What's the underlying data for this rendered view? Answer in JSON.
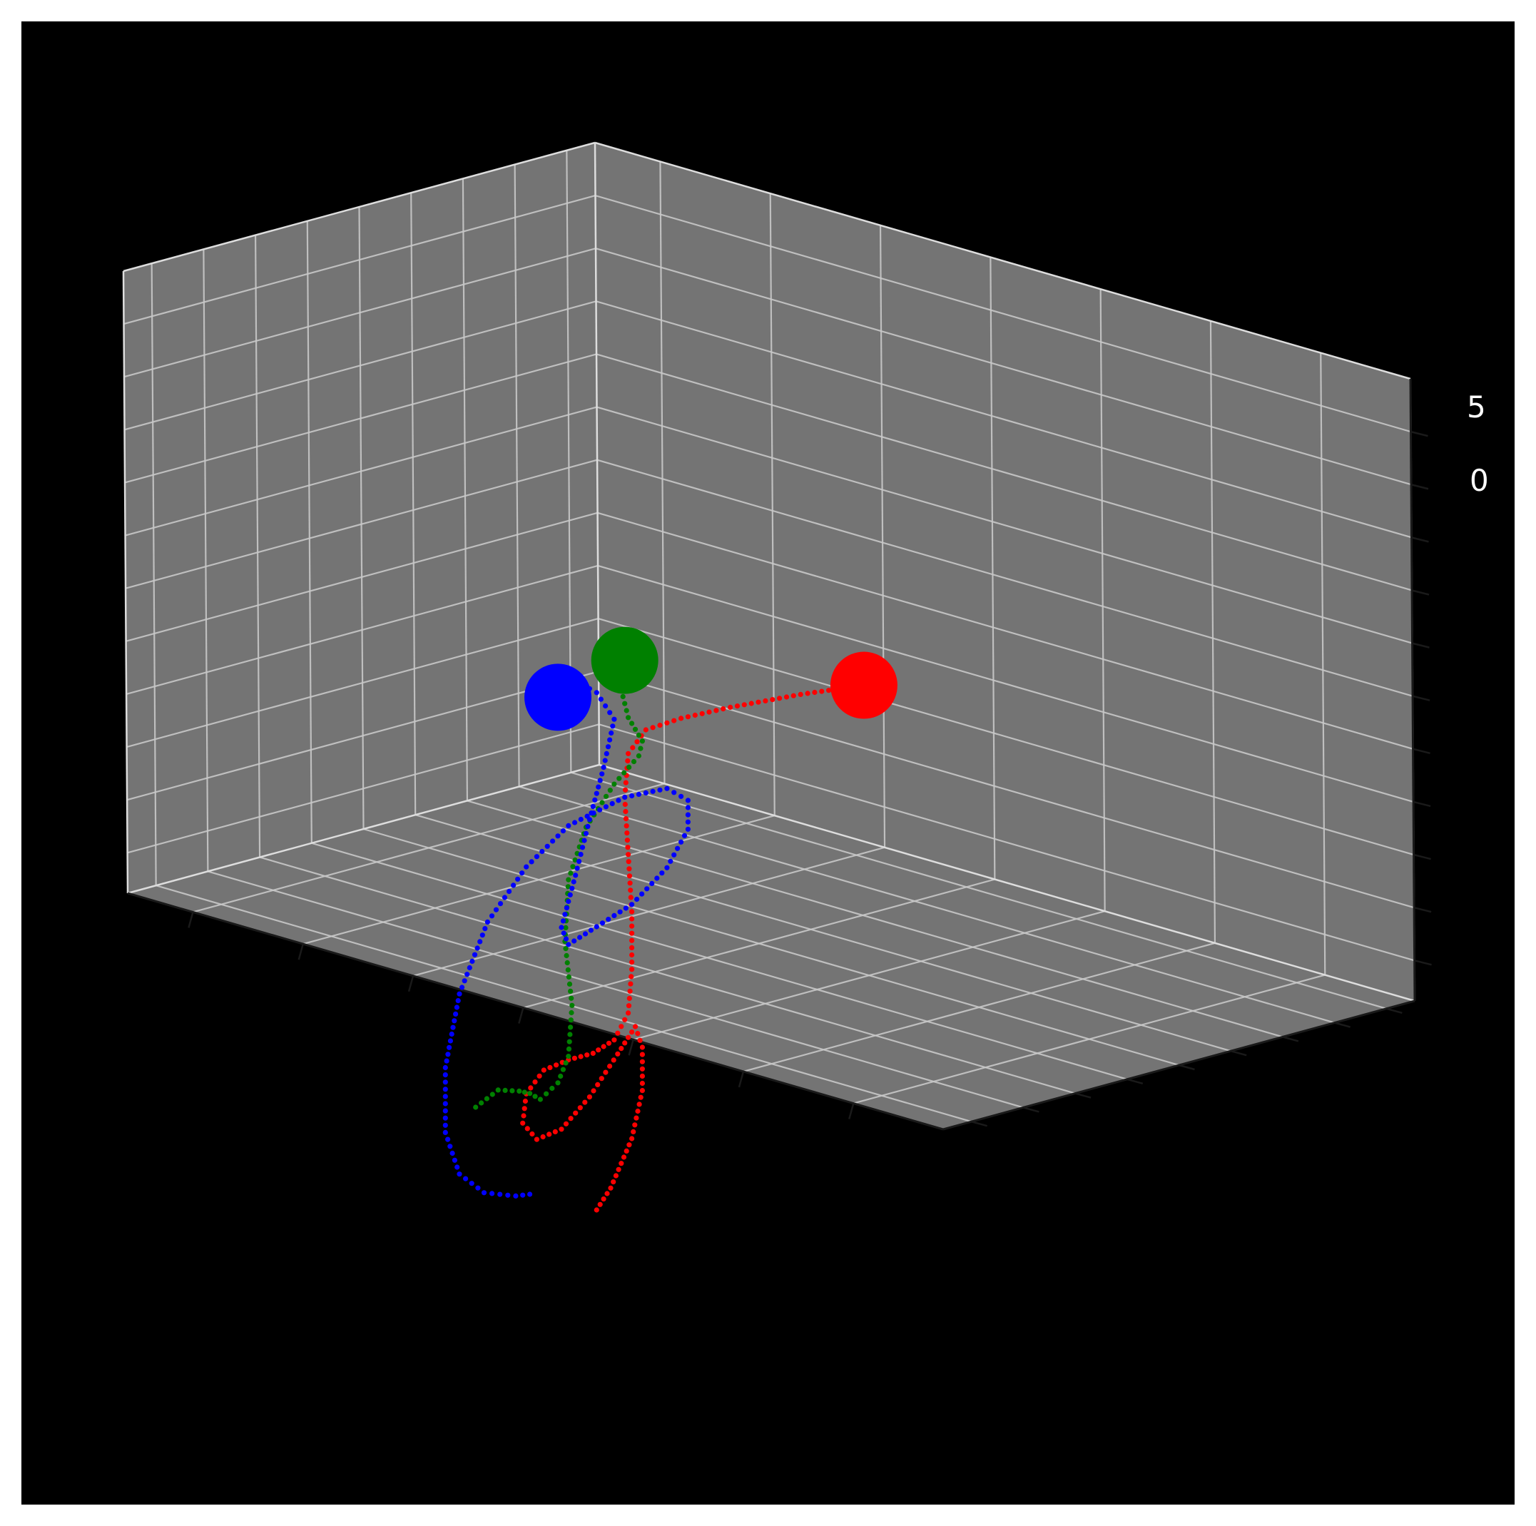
{
  "chart_data": {
    "type": "scatter3d",
    "title": "",
    "background": "#000000",
    "pane_color": "#747474",
    "grid": true,
    "z_tick_labels": [
      "5",
      "0"
    ],
    "bodies": [
      {
        "color": "#ff0000",
        "start": [
          3.9,
          0.6,
          0.65
        ],
        "trail": [
          [
            3.9,
            0.6,
            0.65
          ],
          [
            3.0,
            0.6,
            0.63
          ],
          [
            2.0,
            0.6,
            0.57
          ],
          [
            1.3,
            0.6,
            0.5
          ],
          [
            0.8,
            0.6,
            0.4
          ],
          [
            0.55,
            0.6,
            0.1
          ],
          [
            0.5,
            0.6,
            -0.5
          ],
          [
            0.55,
            0.6,
            -1.3
          ],
          [
            0.6,
            0.6,
            -2.1
          ],
          [
            0.6,
            0.6,
            -2.9
          ],
          [
            0.55,
            0.6,
            -3.5
          ],
          [
            0.35,
            0.6,
            -3.85
          ],
          [
            0.05,
            0.6,
            -4.0
          ],
          [
            -0.3,
            0.6,
            -4.05
          ],
          [
            -0.65,
            0.6,
            -4.15
          ],
          [
            -0.9,
            0.6,
            -4.45
          ],
          [
            -0.95,
            0.6,
            -4.85
          ],
          [
            -0.75,
            0.6,
            -5.1
          ],
          [
            -0.4,
            0.6,
            -5.0
          ],
          [
            0.0,
            0.6,
            -4.6
          ],
          [
            0.4,
            0.6,
            -4.05
          ],
          [
            0.65,
            0.6,
            -3.7
          ],
          [
            0.75,
            0.6,
            -4.0
          ],
          [
            0.75,
            0.6,
            -4.6
          ],
          [
            0.6,
            0.6,
            -5.25
          ],
          [
            0.3,
            0.6,
            -5.9
          ],
          [
            0.05,
            0.6,
            -6.25
          ]
        ]
      },
      {
        "color": "#008000",
        "start": [
          0.5,
          0.6,
          1.4
        ],
        "trail": [
          [
            0.5,
            0.6,
            1.4
          ],
          [
            0.45,
            0.6,
            1.0
          ],
          [
            0.55,
            0.6,
            0.6
          ],
          [
            0.75,
            0.6,
            0.25
          ],
          [
            0.7,
            0.6,
            0.05
          ],
          [
            0.35,
            0.6,
            -0.3
          ],
          [
            -0.05,
            0.6,
            -0.85
          ],
          [
            -0.3,
            0.6,
            -1.55
          ],
          [
            -0.35,
            0.6,
            -2.4
          ],
          [
            -0.25,
            0.6,
            -3.3
          ],
          [
            -0.3,
            0.6,
            -4.0
          ],
          [
            -0.45,
            0.6,
            -4.35
          ],
          [
            -0.7,
            0.6,
            -4.55
          ],
          [
            -0.85,
            0.6,
            -4.45
          ],
          [
            -1.0,
            0.6,
            -4.4
          ],
          [
            -1.3,
            0.6,
            -4.35
          ],
          [
            -1.7,
            0.6,
            -4.6
          ]
        ]
      },
      {
        "color": "#0000ff",
        "start": [
          -0.45,
          0.6,
          1.0
        ],
        "trail": [
          [
            -0.45,
            0.6,
            1.0
          ],
          [
            -0.2,
            0.6,
            1.2
          ],
          [
            0.1,
            0.6,
            1.0
          ],
          [
            0.35,
            0.6,
            0.6
          ],
          [
            0.2,
            0.6,
            -0.05
          ],
          [
            0.0,
            0.6,
            -0.75
          ],
          [
            -0.2,
            0.6,
            -1.5
          ],
          [
            -0.4,
            0.6,
            -2.2
          ],
          [
            -0.3,
            0.6,
            -2.45
          ],
          [
            0.1,
            0.6,
            -2.25
          ],
          [
            0.6,
            0.6,
            -2.0
          ],
          [
            1.1,
            0.6,
            -1.55
          ],
          [
            1.4,
            0.6,
            -1.05
          ],
          [
            1.4,
            0.6,
            -0.65
          ],
          [
            1.1,
            0.6,
            -0.45
          ],
          [
            0.5,
            0.6,
            -0.5
          ],
          [
            -0.3,
            0.6,
            -0.8
          ],
          [
            -0.9,
            0.6,
            -1.3
          ],
          [
            -1.45,
            0.6,
            -2.0
          ],
          [
            -1.85,
            0.6,
            -2.95
          ],
          [
            -2.05,
            0.6,
            -3.95
          ],
          [
            -2.05,
            0.6,
            -4.85
          ],
          [
            -1.85,
            0.6,
            -5.45
          ],
          [
            -1.5,
            0.6,
            -5.75
          ],
          [
            -1.05,
            0.6,
            -5.85
          ],
          [
            -0.75,
            0.6,
            -5.85
          ]
        ]
      }
    ]
  }
}
